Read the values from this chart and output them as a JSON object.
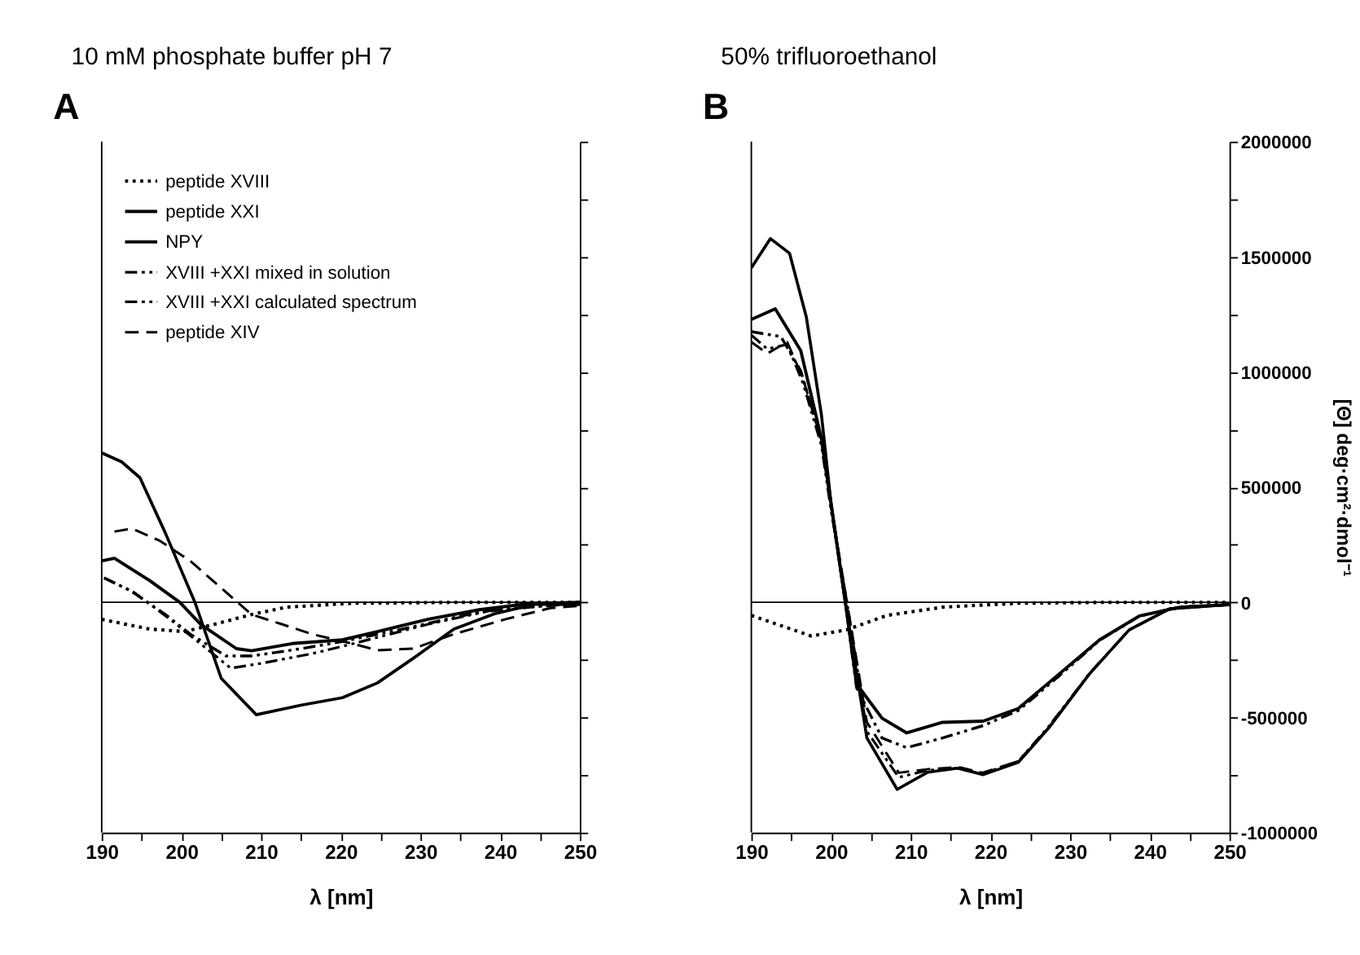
{
  "chart_data": [
    {
      "type": "line",
      "title": "10 mM phosphate buffer pH 7",
      "annotations": [
        "A"
      ],
      "xlabel": "λ [nm]",
      "xlim": [
        190,
        250
      ],
      "xticks": [
        190,
        {
          "value": 195,
          "label": null
        },
        200,
        {
          "value": 205,
          "label": null
        },
        210,
        {
          "value": 215,
          "label": null
        },
        220,
        {
          "value": 225,
          "label": null
        },
        230,
        {
          "value": 235,
          "label": null
        },
        240,
        {
          "value": 245,
          "label": null
        },
        250
      ],
      "ylim": [
        -1000000,
        2000000
      ],
      "yticks": [
        -1000000,
        -750000,
        -500000,
        -250000,
        0,
        250000,
        500000,
        750000,
        1000000,
        1250000,
        1500000,
        1750000,
        2000000
      ],
      "tick_labels": "x",
      "legend": "top left",
      "ref_lines": [
        {
          "axis": "y",
          "value": 0
        }
      ],
      "series": [
        {
          "name": "peptide XVIII",
          "color": "#000000",
          "line_style": "dotted",
          "x": [
            190,
            196,
            200.4,
            204.2,
            208.8,
            213.2,
            221.5,
            235,
            250
          ],
          "values": [
            -74000,
            -116000,
            -127000,
            -95000,
            -53000,
            -21000,
            -4000,
            0,
            0
          ]
        },
        {
          "name": "peptide XXI",
          "color": "#000000",
          "line_style": "solid",
          "x": [
            190,
            191.6,
            196,
            199.8,
            202.4,
            206.9,
            208.8,
            213.9,
            220.2,
            224.6,
            231,
            237.4,
            243.7,
            250
          ],
          "values": [
            180000,
            191000,
            95000,
            0,
            -95000,
            -201000,
            -210000,
            -179000,
            -163000,
            -127000,
            -73000,
            -32000,
            -5000,
            0
          ]
        },
        {
          "name": "NPY",
          "color": "#000000",
          "line_style": "solid",
          "x": [
            190,
            192.5,
            194.8,
            198,
            201.7,
            205,
            209.4,
            215.1,
            220.2,
            224.6,
            229.1,
            234.2,
            239.3,
            244.4,
            250
          ],
          "values": [
            649000,
            610000,
            541000,
            300000,
            0,
            -330000,
            -488000,
            -446000,
            -414000,
            -350000,
            -243000,
            -116000,
            -50000,
            -8000,
            -10000
          ]
        },
        {
          "name": "XVIII +XXI mixed in solution",
          "color": "#000000",
          "line_style": "dashdotdot",
          "x": [
            190.3,
            193.5,
            198,
            201.1,
            205.6,
            208.8,
            215.1,
            220.2,
            227.8,
            237.4,
            250
          ],
          "values": [
            106000,
            53000,
            -53000,
            -138000,
            -233000,
            -233000,
            -201000,
            -170000,
            -116000,
            -42000,
            0
          ]
        },
        {
          "name": "XVIII +XXI calculated spectrum",
          "color": "#000000",
          "line_style": "dashdotdot",
          "x": [
            190.3,
            194.1,
            198.6,
            202.4,
            206.2,
            210,
            216.4,
            221.5,
            231,
            239.3,
            250
          ],
          "values": [
            106000,
            42000,
            -74000,
            -180000,
            -286000,
            -265000,
            -223000,
            -180000,
            -95000,
            -32000,
            -5000
          ]
        },
        {
          "name": "peptide XIV",
          "color": "#000000",
          "line_style": "dashed",
          "x": [
            191.6,
            193.8,
            197.3,
            201.1,
            205.3,
            208.8,
            212.6,
            216.4,
            221.5,
            224.6,
            229.1,
            234.2,
            240.6,
            246.3,
            250
          ],
          "values": [
            307000,
            320000,
            267000,
            180000,
            53000,
            -53000,
            -95000,
            -138000,
            -180000,
            -208000,
            -201000,
            -138000,
            -74000,
            -25000,
            -15000
          ]
        }
      ]
    },
    {
      "type": "line",
      "title": "50% trifluoroethanol",
      "annotations": [
        "B"
      ],
      "xlabel": "λ [nm]",
      "ylabel": "[Θ] deg·cm²·dmol⁻¹",
      "xlim": [
        190,
        250
      ],
      "xticks": [
        190,
        {
          "value": 195,
          "label": null
        },
        200,
        {
          "value": 205,
          "label": null
        },
        210,
        {
          "value": 215,
          "label": null
        },
        220,
        {
          "value": 225,
          "label": null
        },
        230,
        {
          "value": 235,
          "label": null
        },
        240,
        {
          "value": 245,
          "label": null
        },
        250
      ],
      "ylim": [
        -1000000,
        2000000
      ],
      "yticks": [
        -1000000,
        {
          "value": -750000,
          "label": null
        },
        -500000,
        {
          "value": -250000,
          "label": null
        },
        0,
        {
          "value": 250000,
          "label": null
        },
        500000,
        {
          "value": 750000,
          "label": null
        },
        1000000,
        {
          "value": 1250000,
          "label": null
        },
        1500000,
        {
          "value": 1750000,
          "label": null
        },
        2000000
      ],
      "ref_lines": [
        {
          "axis": "y",
          "value": 0
        }
      ],
      "series": [
        {
          "color": "#000000",
          "line_style": "dotted",
          "x": [
            190,
            197.5,
            201.9,
            207,
            214,
            223.5,
            235,
            250
          ],
          "values": [
            -57000,
            -146000,
            -120000,
            -57000,
            -21000,
            -4000,
            0,
            0
          ]
        },
        {
          "color": "#000000",
          "line_style": "solid",
          "x": [
            190,
            193,
            196.2,
            198.8,
            200,
            201.8,
            203.2,
            206.4,
            209.5,
            214,
            219.1,
            223.5,
            228.6,
            233.7,
            238.7,
            243.8,
            250
          ],
          "values": [
            1228000,
            1274000,
            1093000,
            710000,
            430000,
            0,
            -354000,
            -503000,
            -567000,
            -521000,
            -516000,
            -461000,
            -312000,
            -163000,
            -59000,
            -21000,
            -10000
          ]
        },
        {
          "color": "#000000",
          "line_style": "solid",
          "x": [
            190,
            192.4,
            194.8,
            196.9,
            198.8,
            200,
            201.8,
            204.5,
            208.3,
            212.1,
            215.9,
            219.1,
            223.5,
            227.3,
            232.4,
            237.4,
            242.5,
            250
          ],
          "values": [
            1452000,
            1579000,
            1515000,
            1239000,
            813000,
            430000,
            0,
            -589000,
            -812000,
            -738000,
            -720000,
            -748000,
            -695000,
            -546000,
            -312000,
            -120000,
            -28000,
            -10000
          ]
        },
        {
          "color": "#000000",
          "line_style": "dashdotdot",
          "x": [
            190,
            193.7,
            196.2,
            198.8,
            200,
            201.8,
            203.2,
            206.4,
            209.5,
            214,
            219.1,
            223.5,
            228.6,
            233.7,
            238.7,
            243.8,
            250
          ],
          "values": [
            1175000,
            1154000,
            1005000,
            700000,
            420000,
            0,
            -370000,
            -589000,
            -631000,
            -589000,
            -535000,
            -470000,
            -320000,
            -165000,
            -60000,
            -20000,
            -10000
          ]
        },
        {
          "color": "#000000",
          "line_style": "dashdotdot",
          "x": [
            190,
            192,
            194.5,
            196.5,
            198.8,
            200,
            202,
            204.5,
            208.5,
            212,
            216,
            219,
            223.5,
            227.3,
            232.4,
            237.4,
            242.5,
            250
          ],
          "values": [
            1160000,
            1100000,
            1120000,
            950000,
            680000,
            400000,
            0,
            -560000,
            -760000,
            -730000,
            -720000,
            -745000,
            -690000,
            -540000,
            -310000,
            -120000,
            -28000,
            -10000
          ]
        },
        {
          "color": "#000000",
          "line_style": "dashed",
          "x": [
            190,
            192,
            194.5,
            196.5,
            198.8,
            200,
            202,
            204.5,
            208.5,
            212,
            216,
            219,
            223.5,
            227.3,
            232.4,
            237.4,
            242.5,
            250
          ],
          "values": [
            1130000,
            1080000,
            1130000,
            970000,
            700000,
            420000,
            0,
            -520000,
            -740000,
            -725000,
            -715000,
            -740000,
            -690000,
            -545000,
            -312000,
            -120000,
            -28000,
            -10000
          ]
        }
      ]
    }
  ]
}
